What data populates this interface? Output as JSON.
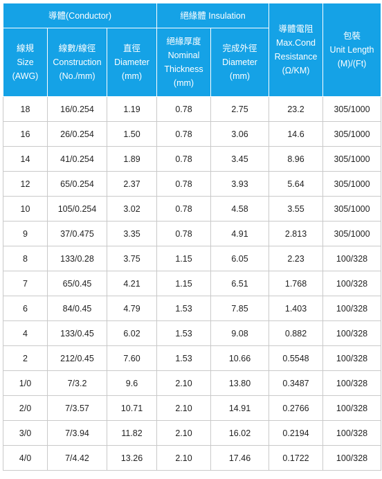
{
  "header": {
    "conductor_group": "導體(Conductor)",
    "insulation_group": "絕緣體 Insulation",
    "resistance": [
      "導體電阻",
      "Max.Cond",
      "Resistance",
      "(Ω/KM)"
    ],
    "unit_length": [
      "包裝",
      "Unit Length",
      "(M)/(Ft)"
    ],
    "size": [
      "線規",
      "Size",
      "(AWG)"
    ],
    "construction": [
      "線數/線徑",
      "Construction",
      "(No./mm)"
    ],
    "diameter": [
      "直徑",
      "Diameter",
      "(mm)"
    ],
    "thickness": [
      "絕緣厚度",
      "Nominal",
      "Thickness",
      "(mm)"
    ],
    "od": [
      "完成外徑",
      "Diameter",
      "(mm)"
    ]
  },
  "rows": [
    [
      "18",
      "16/0.254",
      "1.19",
      "0.78",
      "2.75",
      "23.2",
      "305/1000"
    ],
    [
      "16",
      "26/0.254",
      "1.50",
      "0.78",
      "3.06",
      "14.6",
      "305/1000"
    ],
    [
      "14",
      "41/0.254",
      "1.89",
      "0.78",
      "3.45",
      "8.96",
      "305/1000"
    ],
    [
      "12",
      "65/0.254",
      "2.37",
      "0.78",
      "3.93",
      "5.64",
      "305/1000"
    ],
    [
      "10",
      "105/0.254",
      "3.02",
      "0.78",
      "4.58",
      "3.55",
      "305/1000"
    ],
    [
      "9",
      "37/0.475",
      "3.35",
      "0.78",
      "4.91",
      "2.813",
      "305/1000"
    ],
    [
      "8",
      "133/0.28",
      "3.75",
      "1.15",
      "6.05",
      "2.23",
      "100/328"
    ],
    [
      "7",
      "65/0.45",
      "4.21",
      "1.15",
      "6.51",
      "1.768",
      "100/328"
    ],
    [
      "6",
      "84/0.45",
      "4.79",
      "1.53",
      "7.85",
      "1.403",
      "100/328"
    ],
    [
      "4",
      "133/0.45",
      "6.02",
      "1.53",
      "9.08",
      "0.882",
      "100/328"
    ],
    [
      "2",
      "212/0.45",
      "7.60",
      "1.53",
      "10.66",
      "0.5548",
      "100/328"
    ],
    [
      "1/0",
      "7/3.2",
      "9.6",
      "2.10",
      "13.80",
      "0.3487",
      "100/328"
    ],
    [
      "2/0",
      "7/3.57",
      "10.71",
      "2.10",
      "14.91",
      "0.2766",
      "100/328"
    ],
    [
      "3/0",
      "7/3.94",
      "11.82",
      "2.10",
      "16.02",
      "0.2194",
      "100/328"
    ],
    [
      "4/0",
      "7/4.42",
      "13.26",
      "2.10",
      "17.46",
      "0.1722",
      "100/328"
    ]
  ]
}
